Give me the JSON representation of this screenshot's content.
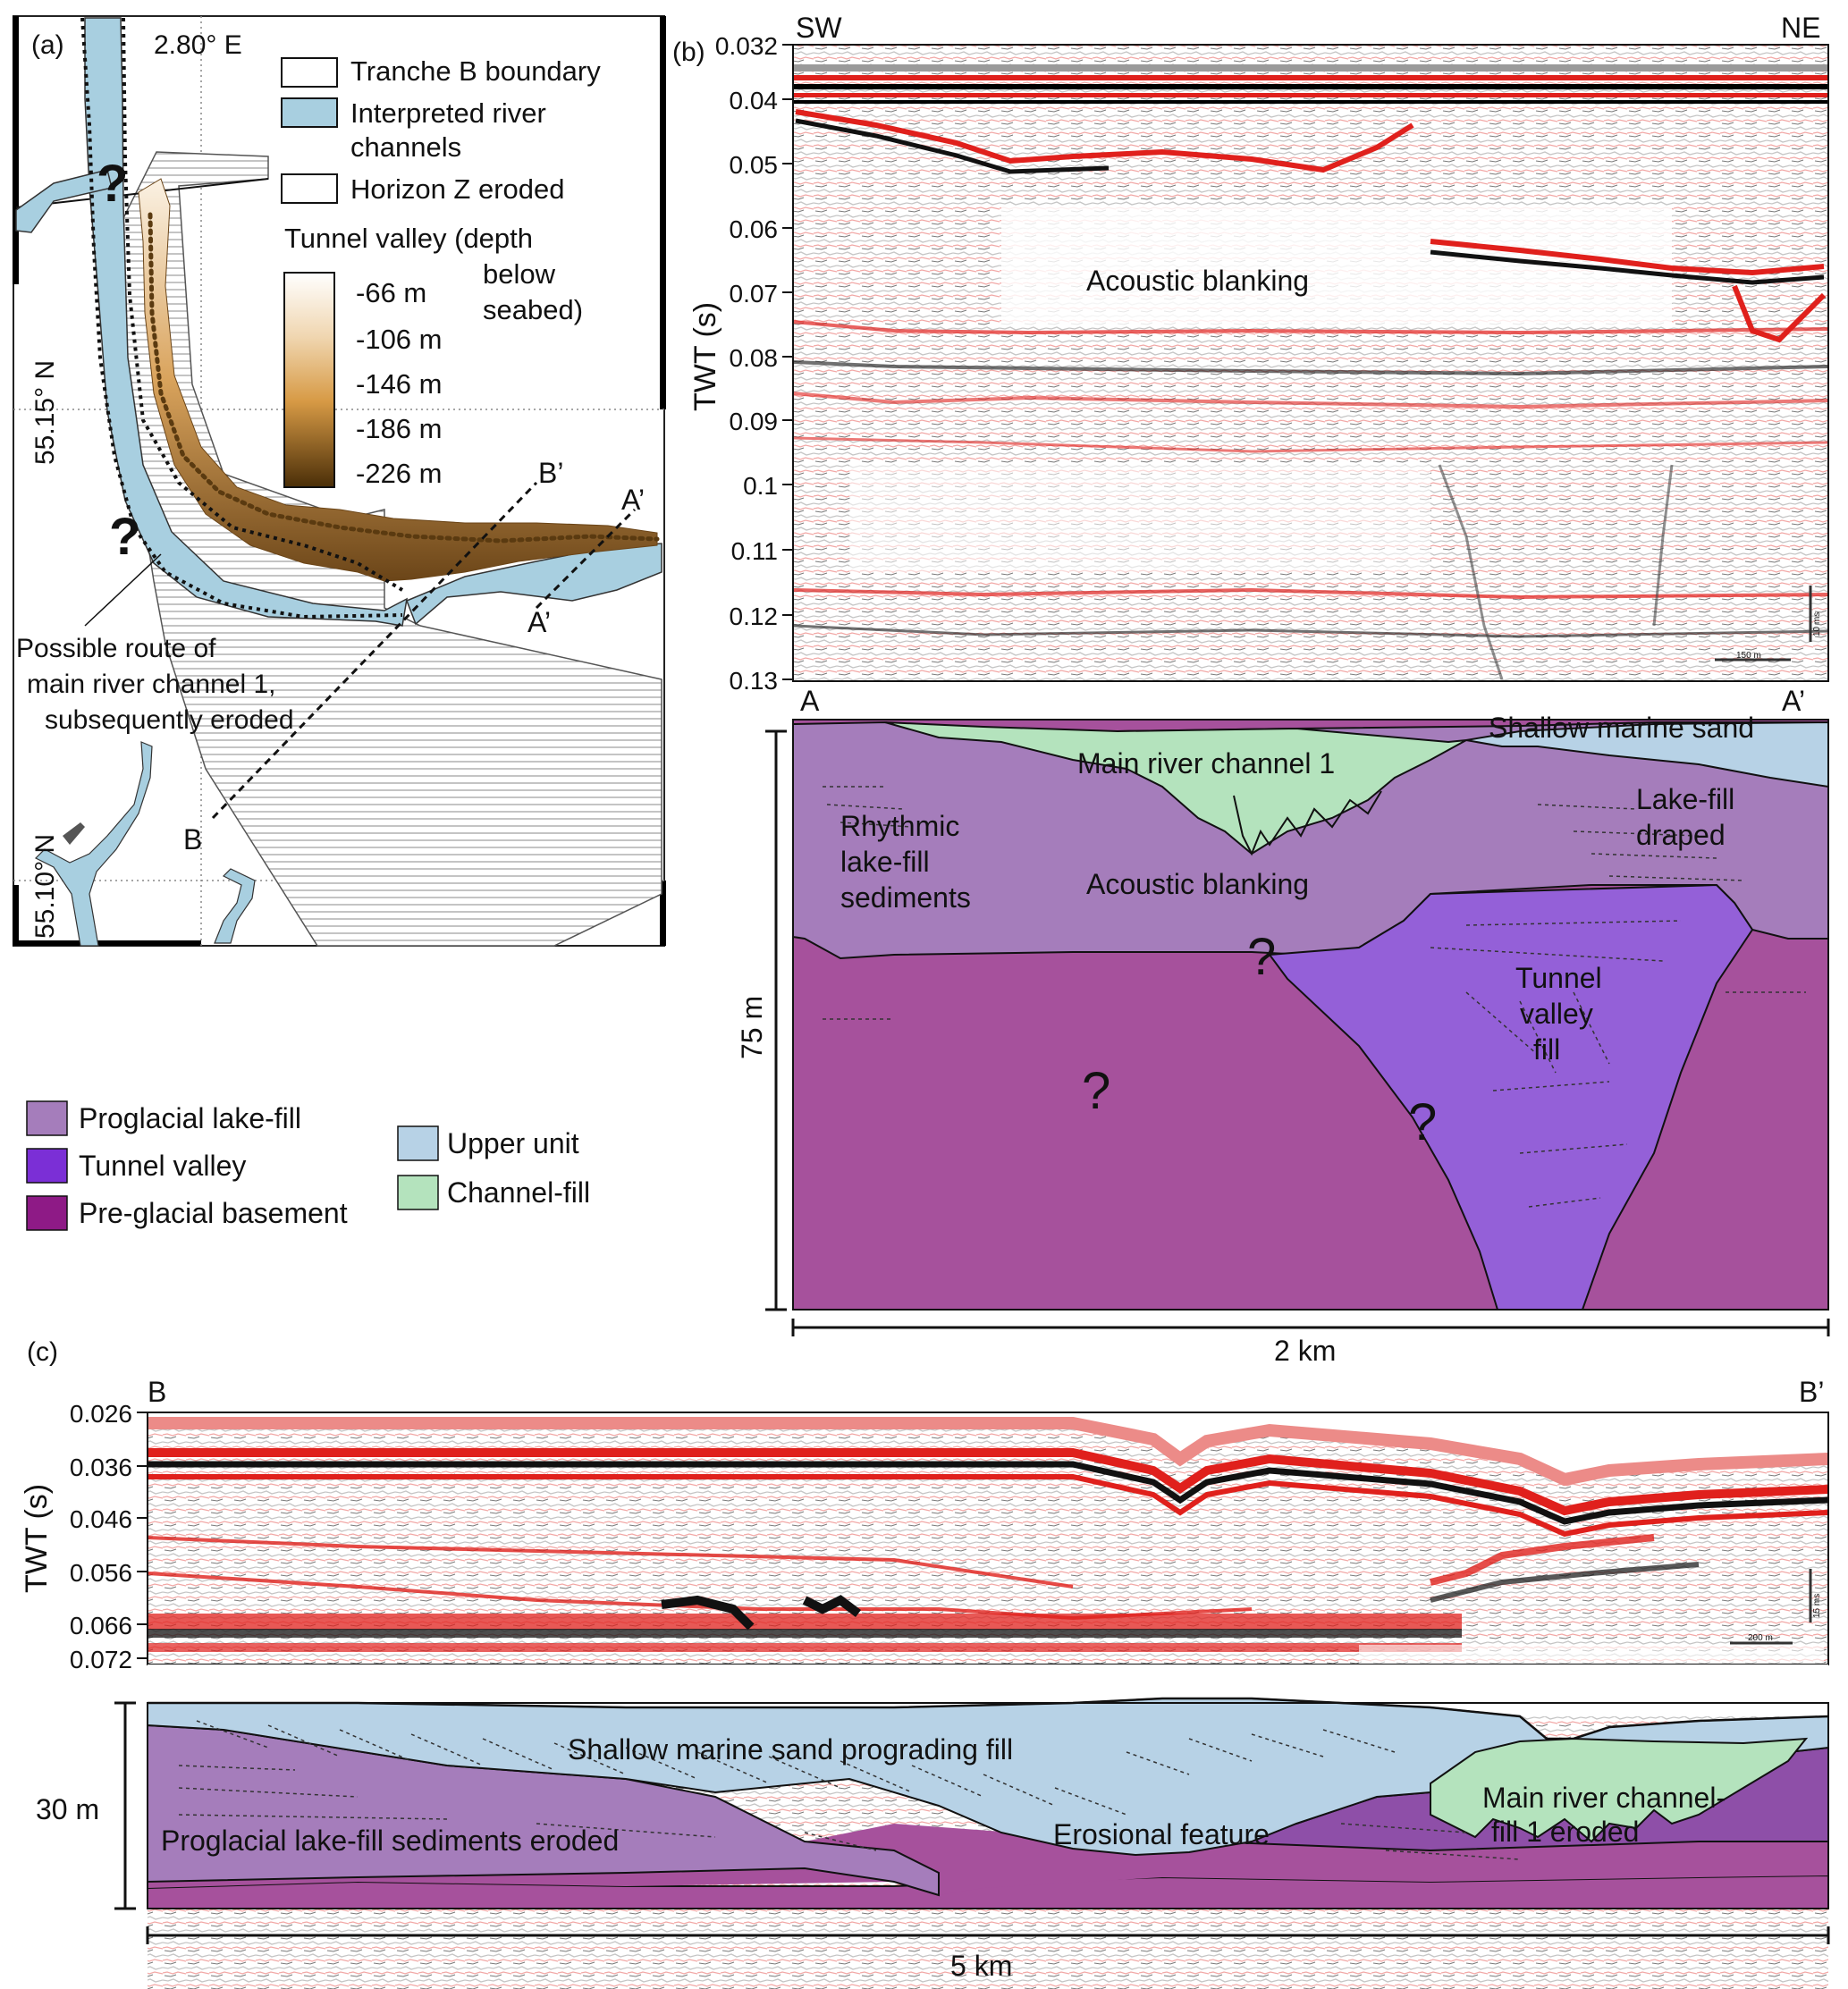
{
  "panel_a": {
    "panel_label": "(a)",
    "lon_label": "2.80° E",
    "lat_label_1": "55.15° N",
    "lat_label_2": "55.10° N",
    "question_mark": "?",
    "point_b": "B",
    "point_b_prime": "B’",
    "point_a_prime_top": "A’",
    "point_a_prime": "A’",
    "route_label_1": "Possible route of",
    "route_label_2": "main river channel 1,",
    "route_label_3": "subsequently eroded",
    "legend": {
      "tranche": "Tranche B boundary",
      "river_1": "Interpreted river",
      "river_2": "channels",
      "horizon": "Horizon Z eroded",
      "tunnel_title": "Tunnel valley (depth",
      "tunnel_title_2": "below",
      "tunnel_title_3": "seabed)",
      "depths": [
        "-66 m",
        "-106 m",
        "-146 m",
        "-186 m",
        "-226 m"
      ]
    }
  },
  "panel_b": {
    "panel_label": "(b)",
    "sw": "SW",
    "ne": "NE",
    "axis_label": "TWT (s)",
    "ticks": [
      "0.032",
      "0.04",
      "0.05",
      "0.06",
      "0.07",
      "0.08",
      "0.09",
      "0.1",
      "0.11",
      "0.12",
      "0.13"
    ],
    "blanking_label": "Acoustic blanking",
    "scale_small_v": "10 ms",
    "scale_small_h": "150 m",
    "section_a": "A",
    "section_a_prime": "A’",
    "labels": {
      "shallow": "Shallow marine sand",
      "main_river": "Main river channel 1",
      "lake_fill_draped_1": "Lake-fill",
      "lake_fill_draped_2": "draped",
      "rhythmic_1": "Rhythmic",
      "rhythmic_2": "lake-fill",
      "rhythmic_3": "sediments",
      "blanking": "Acoustic blanking",
      "tunnel_1": "Tunnel",
      "tunnel_2": "valley",
      "tunnel_3": "fill",
      "question": "?"
    },
    "vertical_scale": "75 m",
    "horizontal_scale": "2 km"
  },
  "legend_units": {
    "proglacial": "Proglacial lake-fill",
    "tunnel": "Tunnel valley",
    "basement": "Pre-glacial basement",
    "upper": "Upper unit",
    "channel": "Channel-fill"
  },
  "panel_c": {
    "panel_label": "(c)",
    "b": "B",
    "b_prime": "B’",
    "axis_label": "TWT (s)",
    "ticks": [
      "0.026",
      "0.036",
      "0.046",
      "0.056",
      "0.066",
      "0.072"
    ],
    "scale_small_v": "15 ms",
    "scale_small_h": "200 m",
    "labels": {
      "shallow": "Shallow marine sand prograding fill",
      "proglacial": "Proglacial lake-fill sediments eroded",
      "erosional": "Erosional feature",
      "main_river_1": "Main river channel-",
      "main_river_2": "fill 1 eroded"
    },
    "vertical_scale": "30 m",
    "horizontal_scale": "5 km"
  },
  "colors": {
    "river": "#a8cfe0",
    "upper_unit": "#b7d2e6",
    "channel_fill": "#b4e3bd",
    "proglacial": "#a57dbb",
    "tunnel_valley": "#9460d8",
    "basement": "#a6519c",
    "seismic_red": "#e0201c",
    "tunnel_light": "#f3e6d8",
    "tunnel_dark": "#6b4518"
  }
}
